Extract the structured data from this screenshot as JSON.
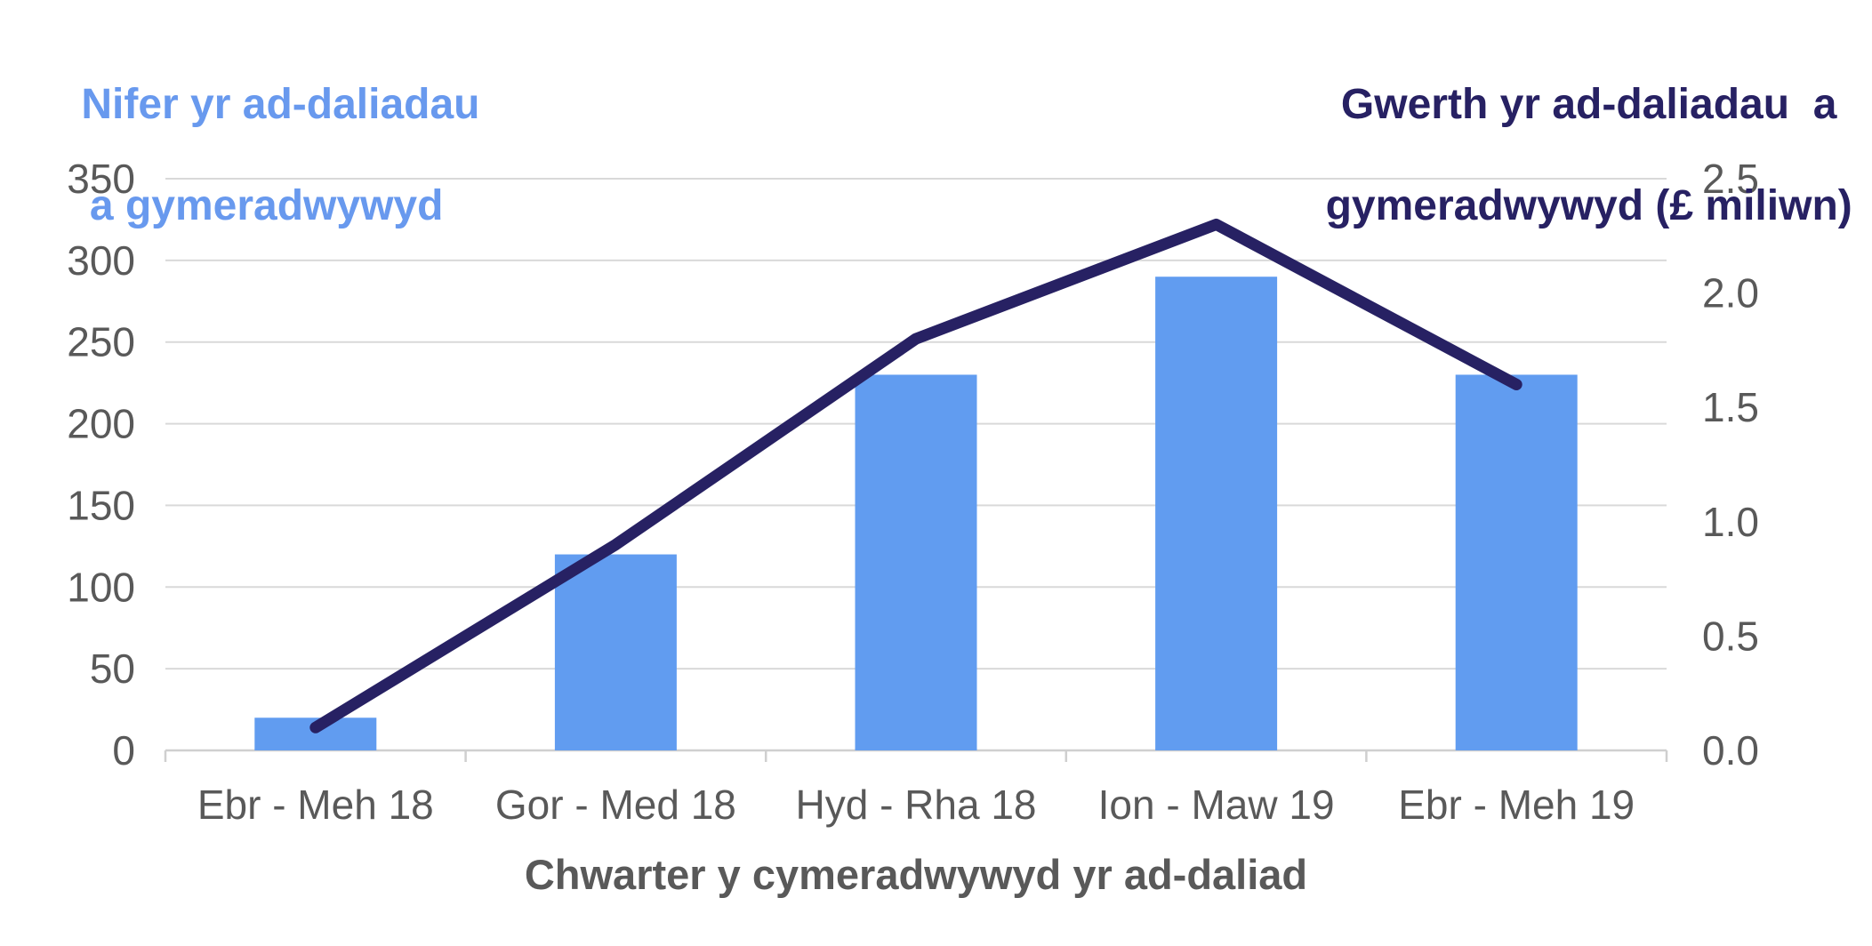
{
  "chart_data": {
    "type": "bar",
    "subtype": "combo-bar-line-dual-axis",
    "categories": [
      "Ebr - Meh 18",
      "Gor - Med 18",
      "Hyd - Rha 18",
      "Ion - Maw 19",
      "Ebr - Meh 19"
    ],
    "series": [
      {
        "name": "Nifer yr ad-daliadau a gymeradwywyd",
        "type": "bar",
        "axis": "left",
        "values": [
          20,
          120,
          230,
          290,
          230
        ],
        "color": "#619CF0"
      },
      {
        "name": "Gwerth yr ad-daliadau a gymeradwywyd (£ miliwn)",
        "type": "line",
        "axis": "right",
        "values": [
          0.1,
          0.9,
          1.8,
          2.3,
          1.6
        ],
        "color": "#272163"
      }
    ],
    "left_axis": {
      "title": "Nifer yr ad-daliadau\n a gymeradwywyd",
      "title_lines": [
        "Nifer yr ad-daliadau",
        "a gymeradwywyd"
      ],
      "title_color": "#6899EE",
      "min": 0,
      "max": 350,
      "step": 50,
      "tick_labels": [
        "0",
        "50",
        "100",
        "150",
        "200",
        "250",
        "300",
        "350"
      ]
    },
    "right_axis": {
      "title": "Gwerth yr ad-daliadau  a gymeradwywyd (£ miliwn)",
      "title_lines": [
        "Gwerth yr ad-daliadau  a",
        "gymeradwywyd (£ miliwn)"
      ],
      "title_color": "#272163",
      "min": 0,
      "max": 2.5,
      "step": 0.5,
      "tick_labels": [
        "0.0",
        "0.5",
        "1.0",
        "1.5",
        "2.0",
        "2.5"
      ]
    },
    "x_axis": {
      "title": "Chwarter y cymeradwywyd yr ad-daliad",
      "title_color": "#595959"
    },
    "styles": {
      "tick_label_color": "#595959",
      "gridline_color": "#D9D9D9",
      "axis_line_color": "#CFCFCF"
    },
    "grid": true,
    "legend": "none"
  }
}
